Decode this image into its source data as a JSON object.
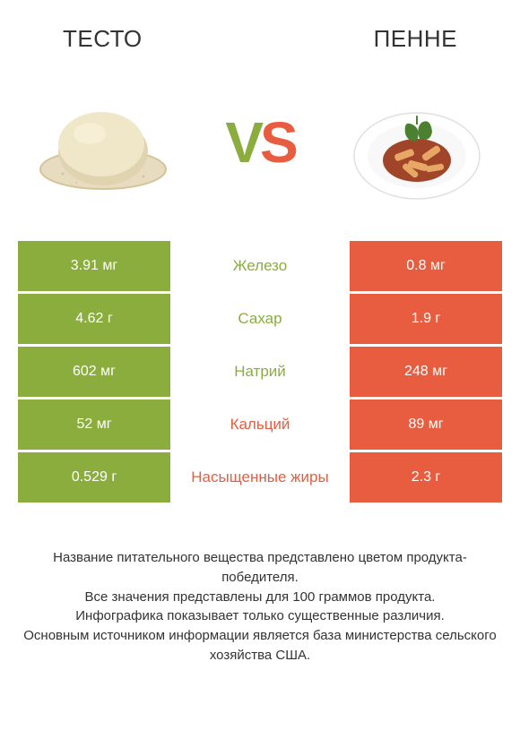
{
  "titles": {
    "left": "ТЕСТО",
    "right": "ПЕННЕ"
  },
  "vs": {
    "v": "V",
    "s": "S"
  },
  "colors": {
    "left": "#8aad3e",
    "right": "#e85c3f",
    "mid_text_left": "#8aad3e",
    "mid_text_right": "#e85c3f"
  },
  "rows": [
    {
      "left": "3.91 мг",
      "mid": "Железо",
      "right": "0.8 мг",
      "winner": "left"
    },
    {
      "left": "4.62 г",
      "mid": "Сахар",
      "right": "1.9 г",
      "winner": "left"
    },
    {
      "left": "602 мг",
      "mid": "Натрий",
      "right": "248 мг",
      "winner": "left"
    },
    {
      "left": "52 мг",
      "mid": "Кальций",
      "right": "89 мг",
      "winner": "right"
    },
    {
      "left": "0.529 г",
      "mid": "Насыщенные жиры",
      "right": "2.3 г",
      "winner": "right"
    }
  ],
  "footer": {
    "line1": "Название питательного вещества представлено цветом продукта-победителя.",
    "line2": "Все значения представлены для 100 граммов продукта.",
    "line3": "Инфографика показывает только существенные различия.",
    "line4": "Основным источником информации является база министерства сельского хозяйства США."
  }
}
